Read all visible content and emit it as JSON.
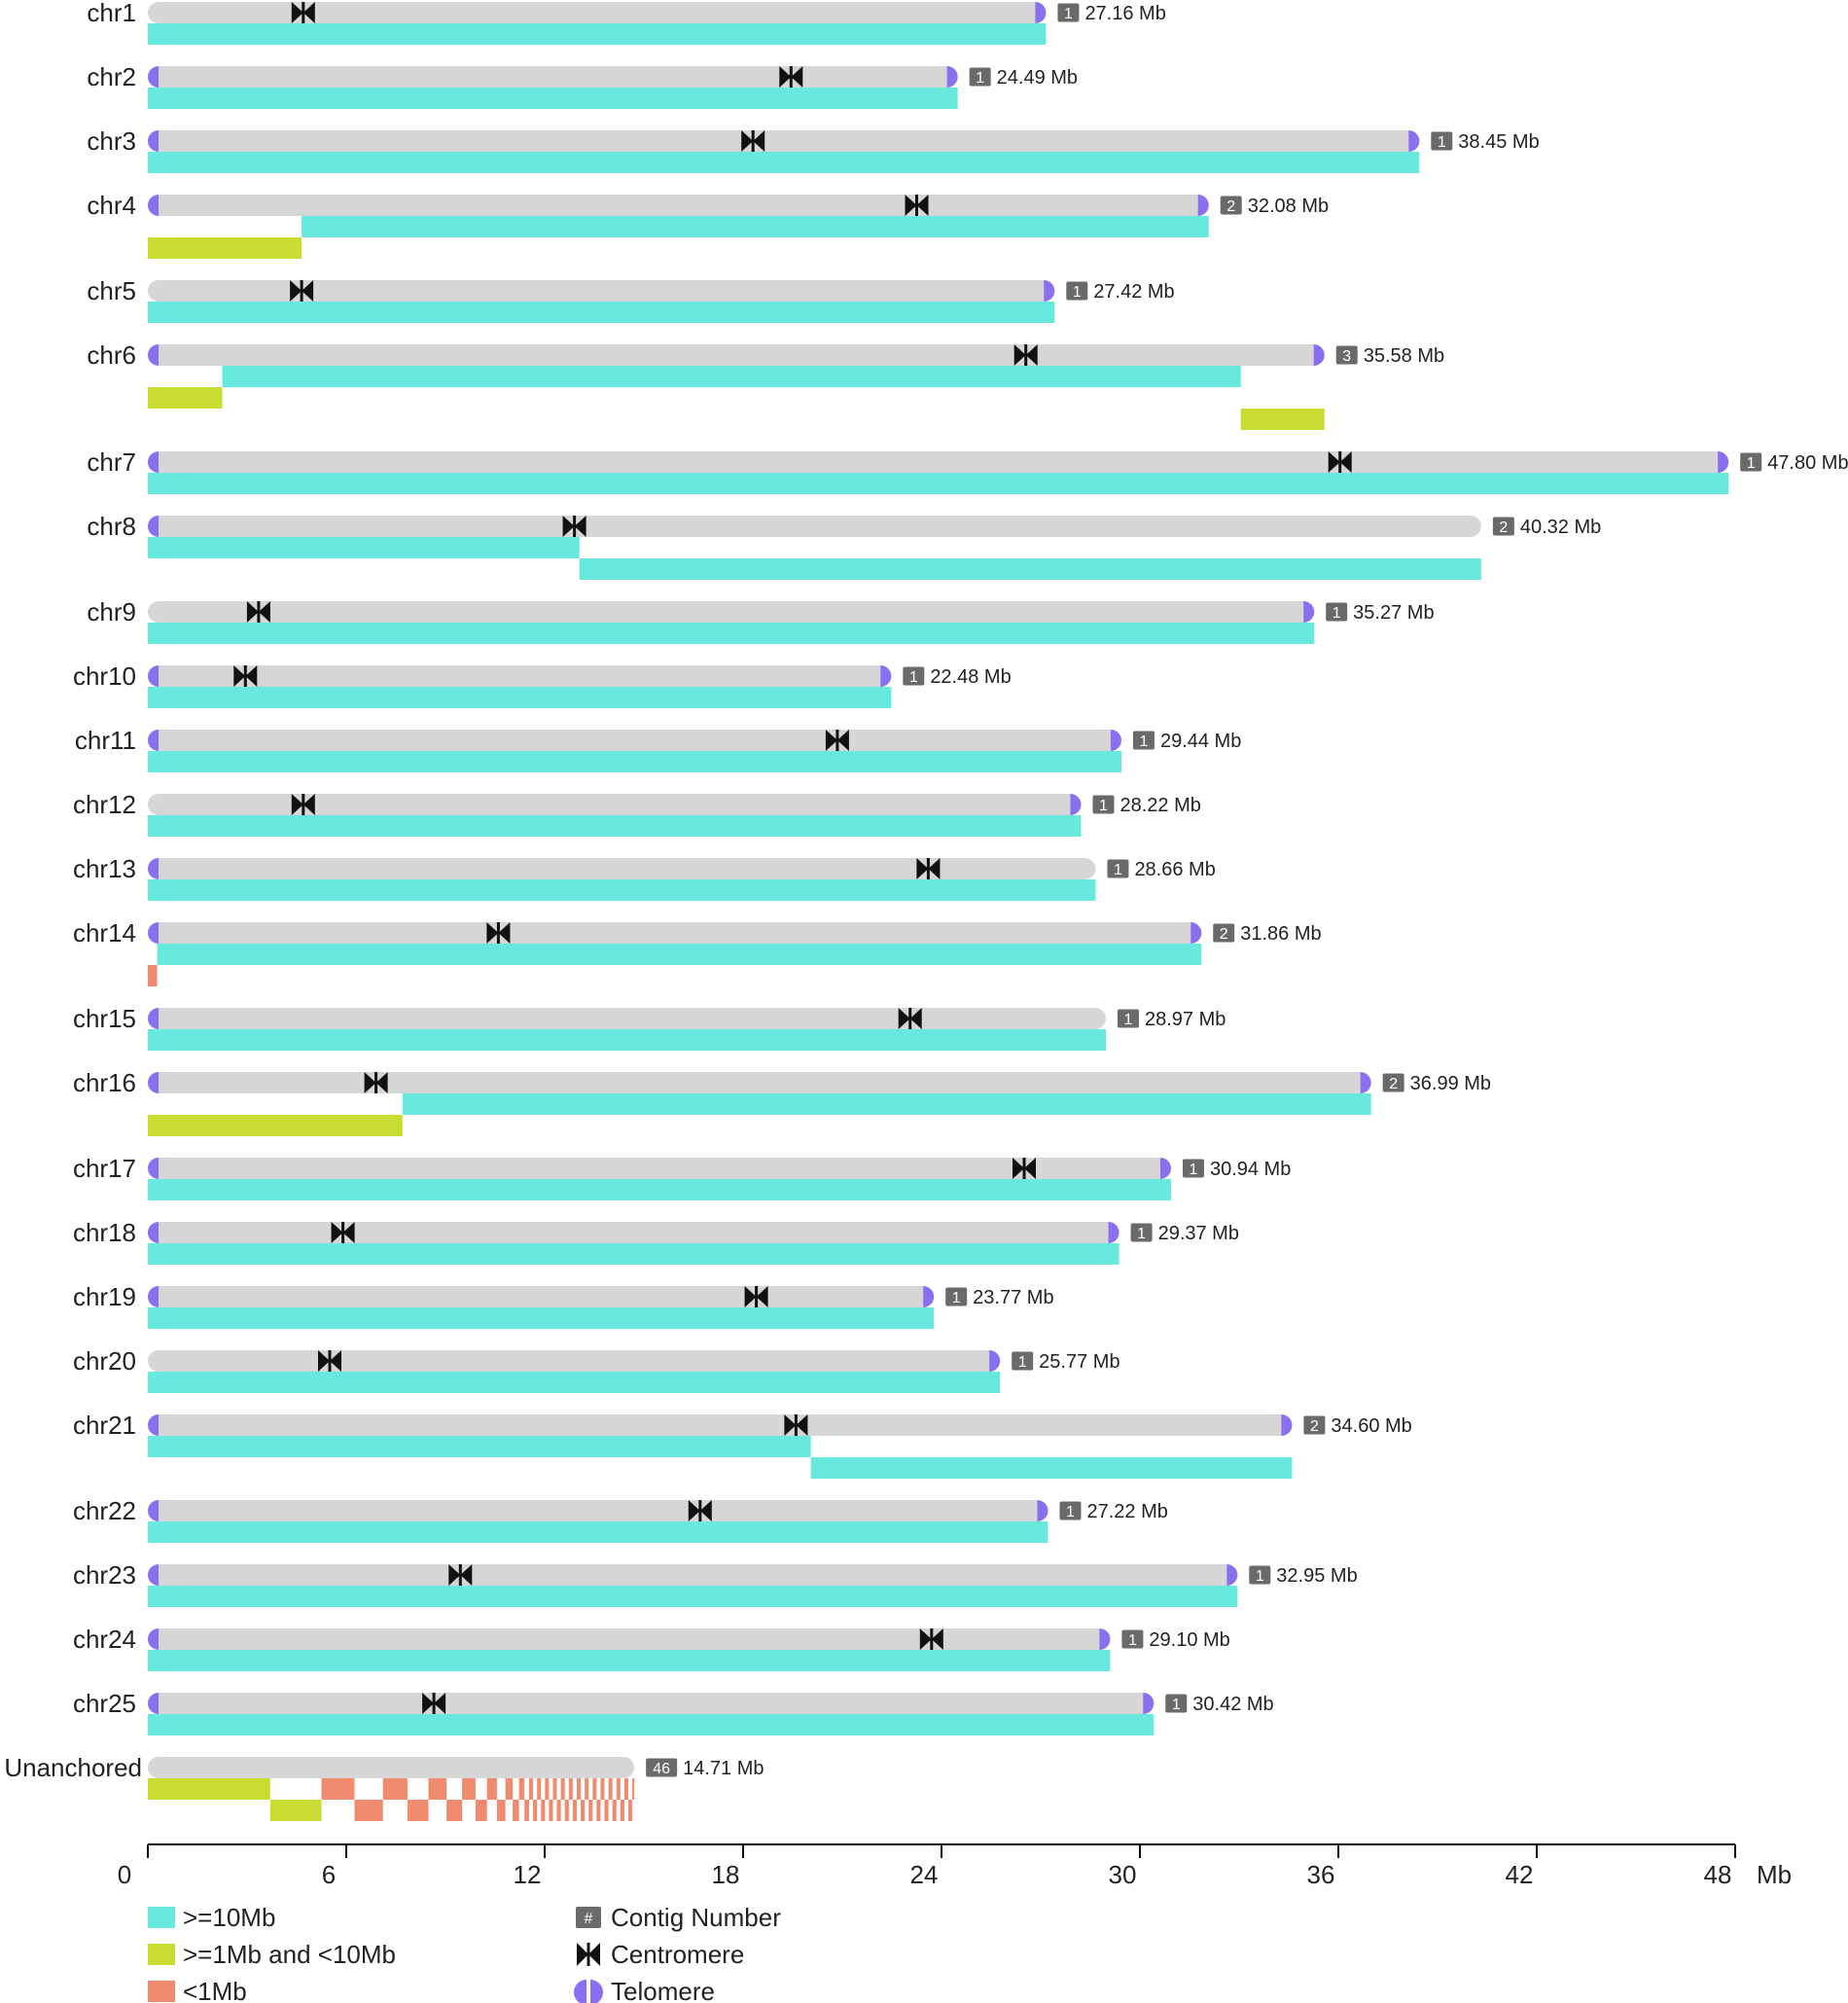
{
  "chart_data": {
    "type": "bar",
    "title": "",
    "xlabel": "Mb",
    "ylabel": "",
    "xlim": [
      0,
      48
    ],
    "x_ticks": [
      "0",
      "6",
      "12",
      "18",
      "24",
      "30",
      "36",
      "42",
      "48"
    ],
    "colors": {
      "chromosome": "#d6d6d6",
      "ge10mb": "#67eadd",
      "1to10mb": "#c9dc32",
      "lt1mb": "#f08b70",
      "centromere": "#111111",
      "telomere": "#8a70f0",
      "badge": "#6a6a6a"
    },
    "chromosomes": [
      {
        "name": "chr1",
        "length": 27.16,
        "length_label": "27.16 Mb",
        "contigs": "1",
        "centromere": 4.7,
        "telomere_left": false,
        "telomere_right": true,
        "rows": [
          [
            {
              "start": 0,
              "end": 27.16,
              "cls": "ge10mb"
            }
          ]
        ]
      },
      {
        "name": "chr2",
        "length": 24.49,
        "length_label": "24.49 Mb",
        "contigs": "1",
        "centromere": 19.45,
        "telomere_left": true,
        "telomere_right": true,
        "rows": [
          [
            {
              "start": 0,
              "end": 24.49,
              "cls": "ge10mb"
            }
          ]
        ]
      },
      {
        "name": "chr3",
        "length": 38.45,
        "length_label": "38.45 Mb",
        "contigs": "1",
        "centromere": 18.3,
        "telomere_left": true,
        "telomere_right": true,
        "rows": [
          [
            {
              "start": 0,
              "end": 38.45,
              "cls": "ge10mb"
            }
          ]
        ]
      },
      {
        "name": "chr4",
        "length": 32.08,
        "length_label": "32.08 Mb",
        "contigs": "2",
        "centromere": 23.25,
        "telomere_left": true,
        "telomere_right": true,
        "rows": [
          [
            {
              "start": 4.65,
              "end": 32.08,
              "cls": "ge10mb"
            }
          ],
          [
            {
              "start": 0,
              "end": 4.65,
              "cls": "1to10mb"
            }
          ]
        ]
      },
      {
        "name": "chr5",
        "length": 27.42,
        "length_label": "27.42 Mb",
        "contigs": "1",
        "centromere": 4.65,
        "telomere_left": false,
        "telomere_right": true,
        "rows": [
          [
            {
              "start": 0,
              "end": 27.42,
              "cls": "ge10mb"
            }
          ]
        ]
      },
      {
        "name": "chr6",
        "length": 35.58,
        "length_label": "35.58 Mb",
        "contigs": "3",
        "centromere": 26.55,
        "telomere_left": true,
        "telomere_right": true,
        "rows": [
          [
            {
              "start": 2.25,
              "end": 33.05,
              "cls": "ge10mb"
            }
          ],
          [
            {
              "start": 0,
              "end": 2.25,
              "cls": "1to10mb"
            }
          ],
          [
            {
              "start": 33.05,
              "end": 35.58,
              "cls": "1to10mb"
            }
          ]
        ]
      },
      {
        "name": "chr7",
        "length": 47.8,
        "length_label": "47.80 Mb",
        "contigs": "1",
        "centromere": 36.05,
        "telomere_left": true,
        "telomere_right": true,
        "rows": [
          [
            {
              "start": 0,
              "end": 47.8,
              "cls": "ge10mb"
            }
          ]
        ]
      },
      {
        "name": "chr8",
        "length": 40.32,
        "length_label": "40.32 Mb",
        "contigs": "2",
        "centromere": 12.9,
        "telomere_left": true,
        "telomere_right": false,
        "rows": [
          [
            {
              "start": 0,
              "end": 13.05,
              "cls": "ge10mb"
            }
          ],
          [
            {
              "start": 13.05,
              "end": 40.32,
              "cls": "ge10mb"
            }
          ]
        ]
      },
      {
        "name": "chr9",
        "length": 35.27,
        "length_label": "35.27 Mb",
        "contigs": "1",
        "centromere": 3.35,
        "telomere_left": false,
        "telomere_right": true,
        "rows": [
          [
            {
              "start": 0,
              "end": 35.27,
              "cls": "ge10mb"
            }
          ]
        ]
      },
      {
        "name": "chr10",
        "length": 22.48,
        "length_label": "22.48 Mb",
        "contigs": "1",
        "centromere": 2.95,
        "telomere_left": true,
        "telomere_right": true,
        "rows": [
          [
            {
              "start": 0,
              "end": 22.48,
              "cls": "ge10mb"
            }
          ]
        ]
      },
      {
        "name": "chr11",
        "length": 29.44,
        "length_label": "29.44 Mb",
        "contigs": "1",
        "centromere": 20.85,
        "telomere_left": true,
        "telomere_right": true,
        "rows": [
          [
            {
              "start": 0,
              "end": 29.44,
              "cls": "ge10mb"
            }
          ]
        ]
      },
      {
        "name": "chr12",
        "length": 28.22,
        "length_label": "28.22 Mb",
        "contigs": "1",
        "centromere": 4.7,
        "telomere_left": false,
        "telomere_right": true,
        "rows": [
          [
            {
              "start": 0,
              "end": 28.22,
              "cls": "ge10mb"
            }
          ]
        ]
      },
      {
        "name": "chr13",
        "length": 28.66,
        "length_label": "28.66 Mb",
        "contigs": "1",
        "centromere": 23.6,
        "telomere_left": true,
        "telomere_right": false,
        "rows": [
          [
            {
              "start": 0,
              "end": 28.66,
              "cls": "ge10mb"
            }
          ]
        ]
      },
      {
        "name": "chr14",
        "length": 31.86,
        "length_label": "31.86 Mb",
        "contigs": "2",
        "centromere": 10.6,
        "telomere_left": true,
        "telomere_right": true,
        "rows": [
          [
            {
              "start": 0.28,
              "end": 31.86,
              "cls": "ge10mb"
            }
          ],
          [
            {
              "start": 0,
              "end": 0.28,
              "cls": "lt1mb"
            }
          ]
        ]
      },
      {
        "name": "chr15",
        "length": 28.97,
        "length_label": "28.97 Mb",
        "contigs": "1",
        "centromere": 23.05,
        "telomere_left": true,
        "telomere_right": false,
        "rows": [
          [
            {
              "start": 0,
              "end": 28.97,
              "cls": "ge10mb"
            }
          ]
        ]
      },
      {
        "name": "chr16",
        "length": 36.99,
        "length_label": "36.99 Mb",
        "contigs": "2",
        "centromere": 6.9,
        "telomere_left": true,
        "telomere_right": true,
        "rows": [
          [
            {
              "start": 7.7,
              "end": 36.99,
              "cls": "ge10mb"
            }
          ],
          [
            {
              "start": 0,
              "end": 7.7,
              "cls": "1to10mb"
            }
          ]
        ]
      },
      {
        "name": "chr17",
        "length": 30.94,
        "length_label": "30.94 Mb",
        "contigs": "1",
        "centromere": 26.5,
        "telomere_left": true,
        "telomere_right": true,
        "rows": [
          [
            {
              "start": 0,
              "end": 30.94,
              "cls": "ge10mb"
            }
          ]
        ]
      },
      {
        "name": "chr18",
        "length": 29.37,
        "length_label": "29.37 Mb",
        "contigs": "1",
        "centromere": 5.9,
        "telomere_left": true,
        "telomere_right": true,
        "rows": [
          [
            {
              "start": 0,
              "end": 29.37,
              "cls": "ge10mb"
            }
          ]
        ]
      },
      {
        "name": "chr19",
        "length": 23.77,
        "length_label": "23.77 Mb",
        "contigs": "1",
        "centromere": 18.4,
        "telomere_left": true,
        "telomere_right": true,
        "rows": [
          [
            {
              "start": 0,
              "end": 23.77,
              "cls": "ge10mb"
            }
          ]
        ]
      },
      {
        "name": "chr20",
        "length": 25.77,
        "length_label": "25.77 Mb",
        "contigs": "1",
        "centromere": 5.5,
        "telomere_left": false,
        "telomere_right": true,
        "rows": [
          [
            {
              "start": 0,
              "end": 25.77,
              "cls": "ge10mb"
            }
          ]
        ]
      },
      {
        "name": "chr21",
        "length": 34.6,
        "length_label": "34.60 Mb",
        "contigs": "2",
        "centromere": 19.6,
        "telomere_left": true,
        "telomere_right": true,
        "rows": [
          [
            {
              "start": 0,
              "end": 20.05,
              "cls": "ge10mb"
            }
          ],
          [
            {
              "start": 20.05,
              "end": 34.6,
              "cls": "ge10mb"
            }
          ]
        ]
      },
      {
        "name": "chr22",
        "length": 27.22,
        "length_label": "27.22 Mb",
        "contigs": "1",
        "centromere": 16.7,
        "telomere_left": true,
        "telomere_right": true,
        "rows": [
          [
            {
              "start": 0,
              "end": 27.22,
              "cls": "ge10mb"
            }
          ]
        ]
      },
      {
        "name": "chr23",
        "length": 32.95,
        "length_label": "32.95 Mb",
        "contigs": "1",
        "centromere": 9.45,
        "telomere_left": true,
        "telomere_right": true,
        "rows": [
          [
            {
              "start": 0,
              "end": 32.95,
              "cls": "ge10mb"
            }
          ]
        ]
      },
      {
        "name": "chr24",
        "length": 29.1,
        "length_label": "29.10 Mb",
        "contigs": "1",
        "centromere": 23.7,
        "telomere_left": true,
        "telomere_right": true,
        "rows": [
          [
            {
              "start": 0,
              "end": 29.1,
              "cls": "ge10mb"
            }
          ]
        ]
      },
      {
        "name": "chr25",
        "length": 30.42,
        "length_label": "30.42 Mb",
        "contigs": "1",
        "centromere": 8.65,
        "telomere_left": true,
        "telomere_right": true,
        "rows": [
          [
            {
              "start": 0,
              "end": 30.42,
              "cls": "ge10mb"
            }
          ]
        ]
      }
    ],
    "unanchored": {
      "name": "Unanchored",
      "length": 14.71,
      "length_label": "14.71 Mb",
      "contigs": "46",
      "rows": [
        [
          {
            "start": 0,
            "end": 3.7,
            "cls": "1to10mb"
          }
        ],
        [
          {
            "start": 3.7,
            "end": 5.25,
            "cls": "1to10mb"
          }
        ]
      ],
      "small_contigs_range": [
        5.25,
        14.71
      ]
    },
    "legend": [
      {
        "label": ">=10Mb",
        "kind": "swatch",
        "cls": "ge10mb"
      },
      {
        "label": ">=1Mb and <10Mb",
        "kind": "swatch",
        "cls": "1to10mb"
      },
      {
        "label": "<1Mb",
        "kind": "swatch",
        "cls": "lt1mb"
      },
      {
        "label": "Contig Number",
        "kind": "badge",
        "badge_text": "#"
      },
      {
        "label": "Centromere",
        "kind": "centromere"
      },
      {
        "label": "Telomere",
        "kind": "telomere"
      }
    ]
  }
}
